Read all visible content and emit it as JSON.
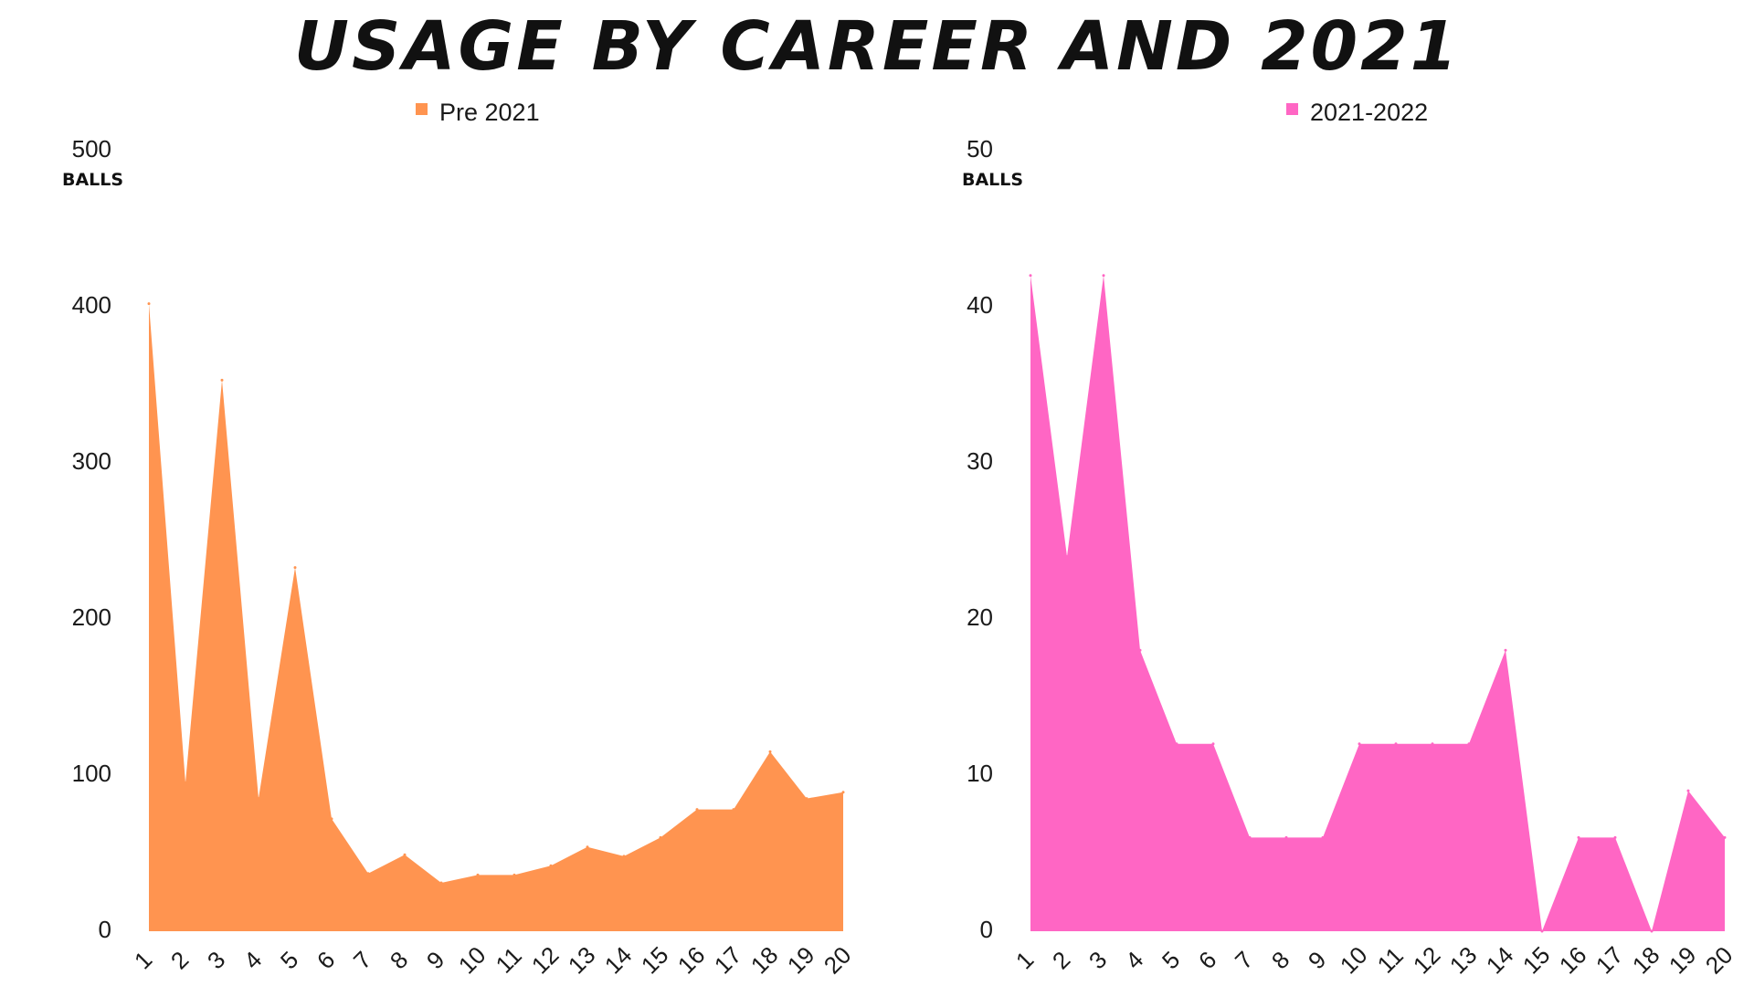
{
  "title": "USAGE BY CAREER AND 2021",
  "chart_data": [
    {
      "type": "area",
      "title": "",
      "legend": "Pre 2021",
      "legend_placement": "top-center",
      "color": "#FF9450",
      "ylabel": "BALLS",
      "xlabel": "",
      "ylim": [
        0,
        500
      ],
      "yticks": [
        "0",
        "100",
        "200",
        "300",
        "400",
        "500"
      ],
      "grid": false,
      "categories": [
        "1",
        "2",
        "3",
        "4",
        "5",
        "6",
        "7",
        "8",
        "9",
        "10",
        "11",
        "12",
        "13",
        "14",
        "15",
        "16",
        "17",
        "18",
        "19",
        "20"
      ],
      "series": [
        {
          "name": "Pre 2021",
          "values": [
            402,
            95,
            353,
            85,
            233,
            72,
            37,
            49,
            31,
            36,
            36,
            42,
            54,
            48,
            60,
            78,
            78,
            115,
            85,
            89
          ]
        }
      ]
    },
    {
      "type": "area",
      "title": "",
      "legend": "2021-2022",
      "legend_placement": "top-center",
      "color": "#FF66C4",
      "ylabel": "BALLS",
      "xlabel": "",
      "ylim": [
        0,
        50
      ],
      "yticks": [
        "0",
        "10",
        "20",
        "30",
        "40",
        "50"
      ],
      "grid": false,
      "categories": [
        "1",
        "2",
        "3",
        "4",
        "5",
        "6",
        "7",
        "8",
        "9",
        "10",
        "11",
        "12",
        "13",
        "14",
        "15",
        "16",
        "17",
        "18",
        "19",
        "20"
      ],
      "series": [
        {
          "name": "2021-2022",
          "values": [
            42,
            24,
            42,
            18,
            12,
            12,
            6,
            6,
            6,
            12,
            12,
            12,
            12,
            18,
            0,
            6,
            6,
            0,
            9,
            6
          ]
        }
      ]
    }
  ]
}
